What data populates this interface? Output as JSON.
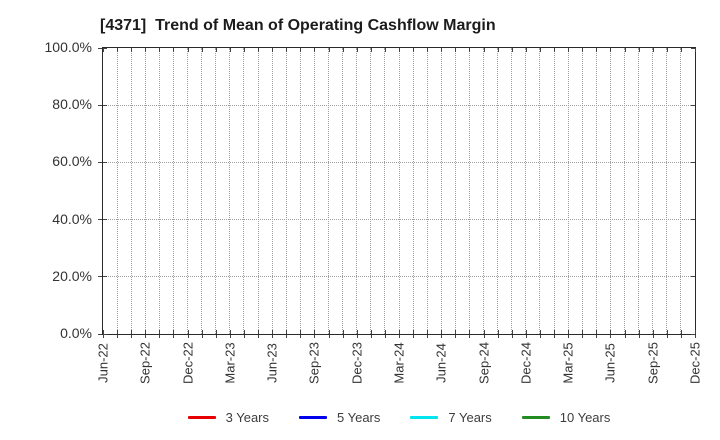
{
  "chart_data": {
    "type": "line",
    "title": "[4371]  Trend of Mean of Operating Cashflow Margin",
    "x_tick_labels": [
      "Jun-22",
      "Sep-22",
      "Dec-22",
      "Mar-23",
      "Jun-23",
      "Sep-23",
      "Dec-23",
      "Mar-24",
      "Jun-24",
      "Sep-24",
      "Dec-24",
      "Mar-25",
      "Jun-25",
      "Sep-25",
      "Dec-25"
    ],
    "months_per_x_tick": 3,
    "y_tick_labels": [
      "0.0%",
      "20.0%",
      "40.0%",
      "60.0%",
      "80.0%",
      "100.0%"
    ],
    "ylim": [
      0,
      100
    ],
    "y_major_step": 20,
    "grid": {
      "vertical": "monthly-dotted",
      "horizontal": "major-dotted",
      "on": true
    },
    "plot_is_empty": true,
    "series": [
      {
        "name": "3 Years",
        "color": "#e80000",
        "values": []
      },
      {
        "name": "5 Years",
        "color": "#0000ee",
        "values": []
      },
      {
        "name": "7 Years",
        "color": "#00e5ee",
        "values": []
      },
      {
        "name": "10 Years",
        "color": "#228b22",
        "values": []
      }
    ],
    "legend_position": "bottom",
    "colors": {
      "spine": "#2a2a2a",
      "grid": "#a0a0a0",
      "tick_text": "#333333",
      "title_text": "#1c1c1c",
      "legend_text": "#3d3d3d",
      "background": "#ffffff"
    }
  }
}
